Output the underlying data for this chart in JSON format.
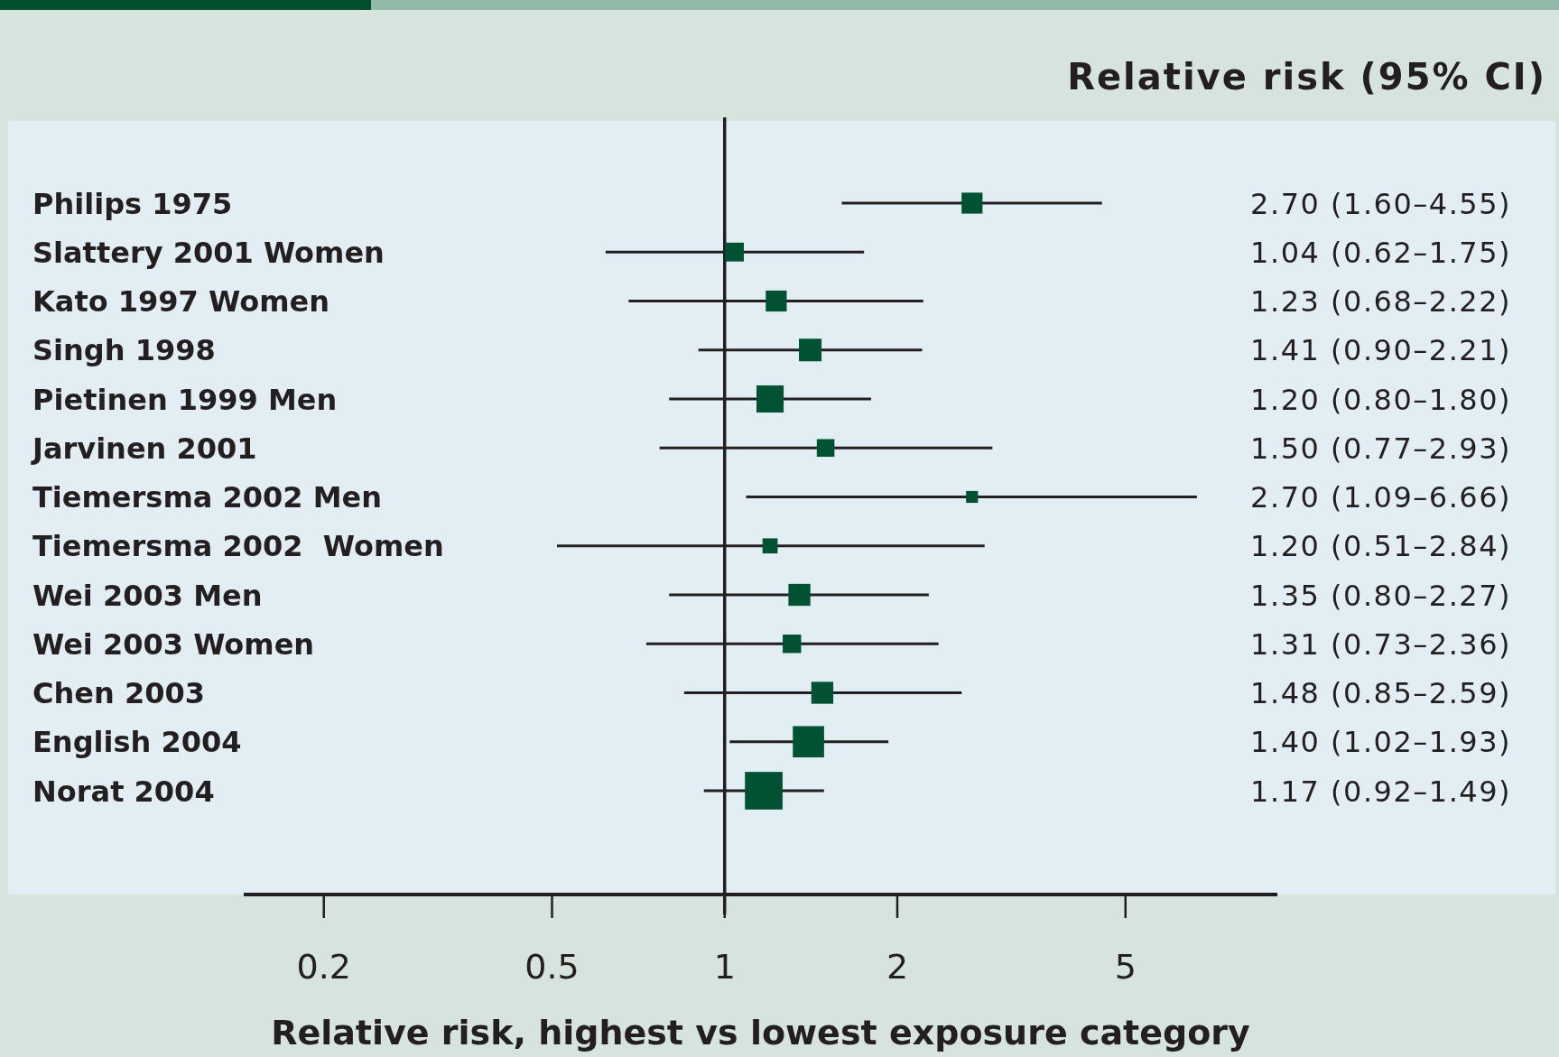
{
  "chart_data": {
    "type": "bubble",
    "orientation": "horizontal",
    "marker": "square",
    "color": "#005232",
    "categories": [
      "Philips 1975",
      "Slattery 2001 Women",
      "Kato 1997 Women",
      "Singh 1998",
      "Pietinen 1999 Men",
      "Jarvinen 2001",
      "Tiemersma 2002 Men",
      "Tiemersma 2002  Women",
      "Wei 2003 Men",
      "Wei 2003 Women",
      "Chen 2003",
      "English 2004",
      "Norat 2004"
    ],
    "values": [
      2.7,
      1.04,
      1.23,
      1.41,
      1.2,
      1.5,
      2.7,
      1.2,
      1.35,
      1.31,
      1.48,
      1.4,
      1.17
    ],
    "errors": [
      [
        1.6,
        4.55
      ],
      [
        0.62,
        1.75
      ],
      [
        0.68,
        2.22
      ],
      [
        0.9,
        2.21
      ],
      [
        0.8,
        1.8
      ],
      [
        0.77,
        2.93
      ],
      [
        1.09,
        6.66
      ],
      [
        0.51,
        2.84
      ],
      [
        0.8,
        2.27
      ],
      [
        0.73,
        2.36
      ],
      [
        0.85,
        2.59
      ],
      [
        1.02,
        1.93
      ],
      [
        0.92,
        1.49
      ]
    ],
    "sizes": [
      0.31,
      0.25,
      0.31,
      0.36,
      0.52,
      0.22,
      0.1,
      0.16,
      0.34,
      0.24,
      0.34,
      0.69,
      1
    ],
    "value_labels": [
      "2.70 (1.60–4.55)",
      "1.04 (0.62–1.75)",
      "1.23 (0.68–2.22)",
      "1.41 (0.90–2.21)",
      "1.20 (0.80–1.80)",
      "1.50 (0.77–2.93)",
      "2.70 (1.09–6.66)",
      "1.20 (0.51–2.84)",
      "1.35 (0.80–2.27)",
      "1.31 (0.73–2.36)",
      "1.48 (0.85–2.59)",
      "1.40 (1.02–1.93)",
      "1.17 (0.92–1.49)"
    ],
    "xlabel": "Relative risk, highest vs lowest exposure category",
    "annotations": [
      "Relative risk (95% CI)"
    ],
    "log": "x",
    "xlim": [
      0.145,
      9.2
    ],
    "xticks": [
      0.2,
      0.5,
      1,
      2,
      5
    ],
    "ref_lines": [
      {
        "axis": "x",
        "value": 1
      }
    ]
  }
}
